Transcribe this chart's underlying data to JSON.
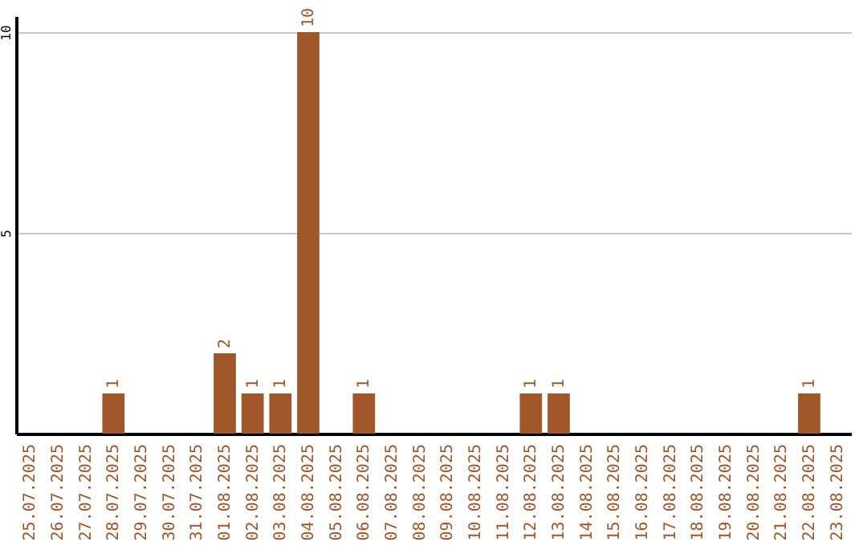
{
  "chart_data": {
    "type": "bar",
    "categories": [
      "25.07.2025",
      "26.07.2025",
      "27.07.2025",
      "28.07.2025",
      "29.07.2025",
      "30.07.2025",
      "31.07.2025",
      "01.08.2025",
      "02.08.2025",
      "03.08.2025",
      "04.08.2025",
      "05.08.2025",
      "06.08.2025",
      "07.08.2025",
      "08.08.2025",
      "09.08.2025",
      "10.08.2025",
      "11.08.2025",
      "12.08.2025",
      "13.08.2025",
      "14.08.2025",
      "15.08.2025",
      "16.08.2025",
      "17.08.2025",
      "18.08.2025",
      "19.08.2025",
      "20.08.2025",
      "21.08.2025",
      "22.08.2025",
      "23.08.2025"
    ],
    "values": [
      0,
      0,
      0,
      1,
      0,
      0,
      0,
      2,
      1,
      1,
      10,
      0,
      1,
      0,
      0,
      0,
      0,
      0,
      1,
      1,
      0,
      0,
      0,
      0,
      0,
      0,
      0,
      0,
      1,
      0
    ],
    "value_labels": [
      null,
      null,
      null,
      "1",
      null,
      null,
      null,
      "2",
      "1",
      "1",
      "10",
      null,
      "1",
      null,
      null,
      null,
      null,
      null,
      "1",
      "1",
      null,
      null,
      null,
      null,
      null,
      null,
      null,
      null,
      "1",
      null
    ],
    "color": "#a0572a",
    "ylim": [
      0,
      10.4
    ],
    "yticks": [
      5,
      10
    ],
    "grid": "y"
  }
}
